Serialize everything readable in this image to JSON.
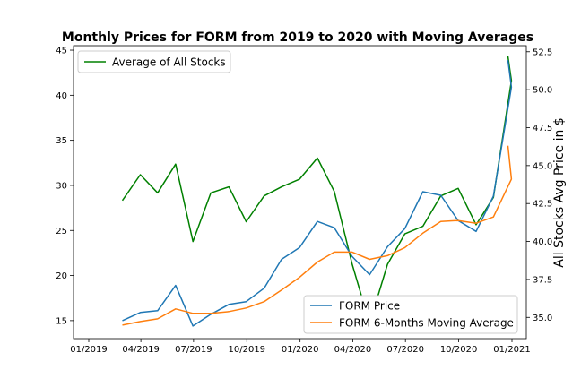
{
  "chart_data": {
    "type": "line",
    "title": "Monthly Prices for FORM from 2019 to 2020 with Moving Averages",
    "xlabel": "",
    "ylabel_left": "",
    "ylabel_right": "All Stocks Avg Price in $",
    "x_ticks": [
      "01/2019",
      "04/2019",
      "07/2019",
      "10/2019",
      "01/2020",
      "04/2020",
      "07/2020",
      "10/2020",
      "01/2021"
    ],
    "yticks_left": [
      15,
      20,
      25,
      30,
      35,
      40,
      45
    ],
    "yticks_right": [
      "35.0",
      "37.5",
      "40.0",
      "42.5",
      "45.0",
      "47.5",
      "50.0",
      "52.5"
    ],
    "ylim_left": [
      13,
      45.5
    ],
    "ylim_right": [
      33.6,
      52.9
    ],
    "x": [
      "2019-02-28",
      "2019-03-31",
      "2019-04-30",
      "2019-05-31",
      "2019-06-30",
      "2019-07-31",
      "2019-08-31",
      "2019-09-30",
      "2019-10-31",
      "2019-11-30",
      "2019-12-31",
      "2020-01-31",
      "2020-02-29",
      "2020-03-31",
      "2020-04-30",
      "2020-05-31",
      "2020-06-30",
      "2020-07-31",
      "2020-08-31",
      "2020-09-30",
      "2020-10-31",
      "2020-11-30",
      "2020-12-31"
    ],
    "grid": false,
    "series": [
      {
        "name": "FORM Price",
        "axis": "left",
        "color": "#1f77b4",
        "values": [
          15.0,
          15.9,
          16.1,
          18.9,
          14.4,
          15.7,
          16.8,
          17.1,
          18.6,
          21.8,
          23.1,
          26.0,
          25.3,
          22.1,
          20.1,
          23.2,
          25.2,
          29.3,
          28.9,
          26.1,
          24.9,
          28.8,
          40.9
        ]
      },
      {
        "name": "FORM 6-Months Moving Average",
        "axis": "left",
        "color": "#ff7f0e",
        "values": [
          14.5,
          14.9,
          15.2,
          16.3,
          15.8,
          15.8,
          16.0,
          16.4,
          17.1,
          18.4,
          19.8,
          21.5,
          22.6,
          22.6,
          21.8,
          22.2,
          23.1,
          24.7,
          26.0,
          26.1,
          25.8,
          26.5,
          30.7
        ]
      },
      {
        "name": "Average of All Stocks",
        "axis": "right",
        "color": "#008000",
        "values": [
          42.7,
          44.4,
          43.2,
          45.1,
          40.0,
          43.2,
          43.6,
          41.3,
          43.0,
          43.6,
          44.1,
          45.5,
          43.3,
          38.5,
          34.6,
          38.5,
          40.5,
          41.0,
          43.0,
          43.5,
          41.1,
          42.9,
          50.6
        ]
      }
    ],
    "extra_points": {
      "FORM Price": [
        "2020-12-25",
        43.9
      ],
      "FORM 6-Months Moving Average": [
        "2020-12-25",
        34.4
      ],
      "Average of All Stocks": [
        "2020-12-25",
        52.2
      ]
    },
    "legend_right_axis": "upper left",
    "legend_left_axis": "lower right"
  }
}
